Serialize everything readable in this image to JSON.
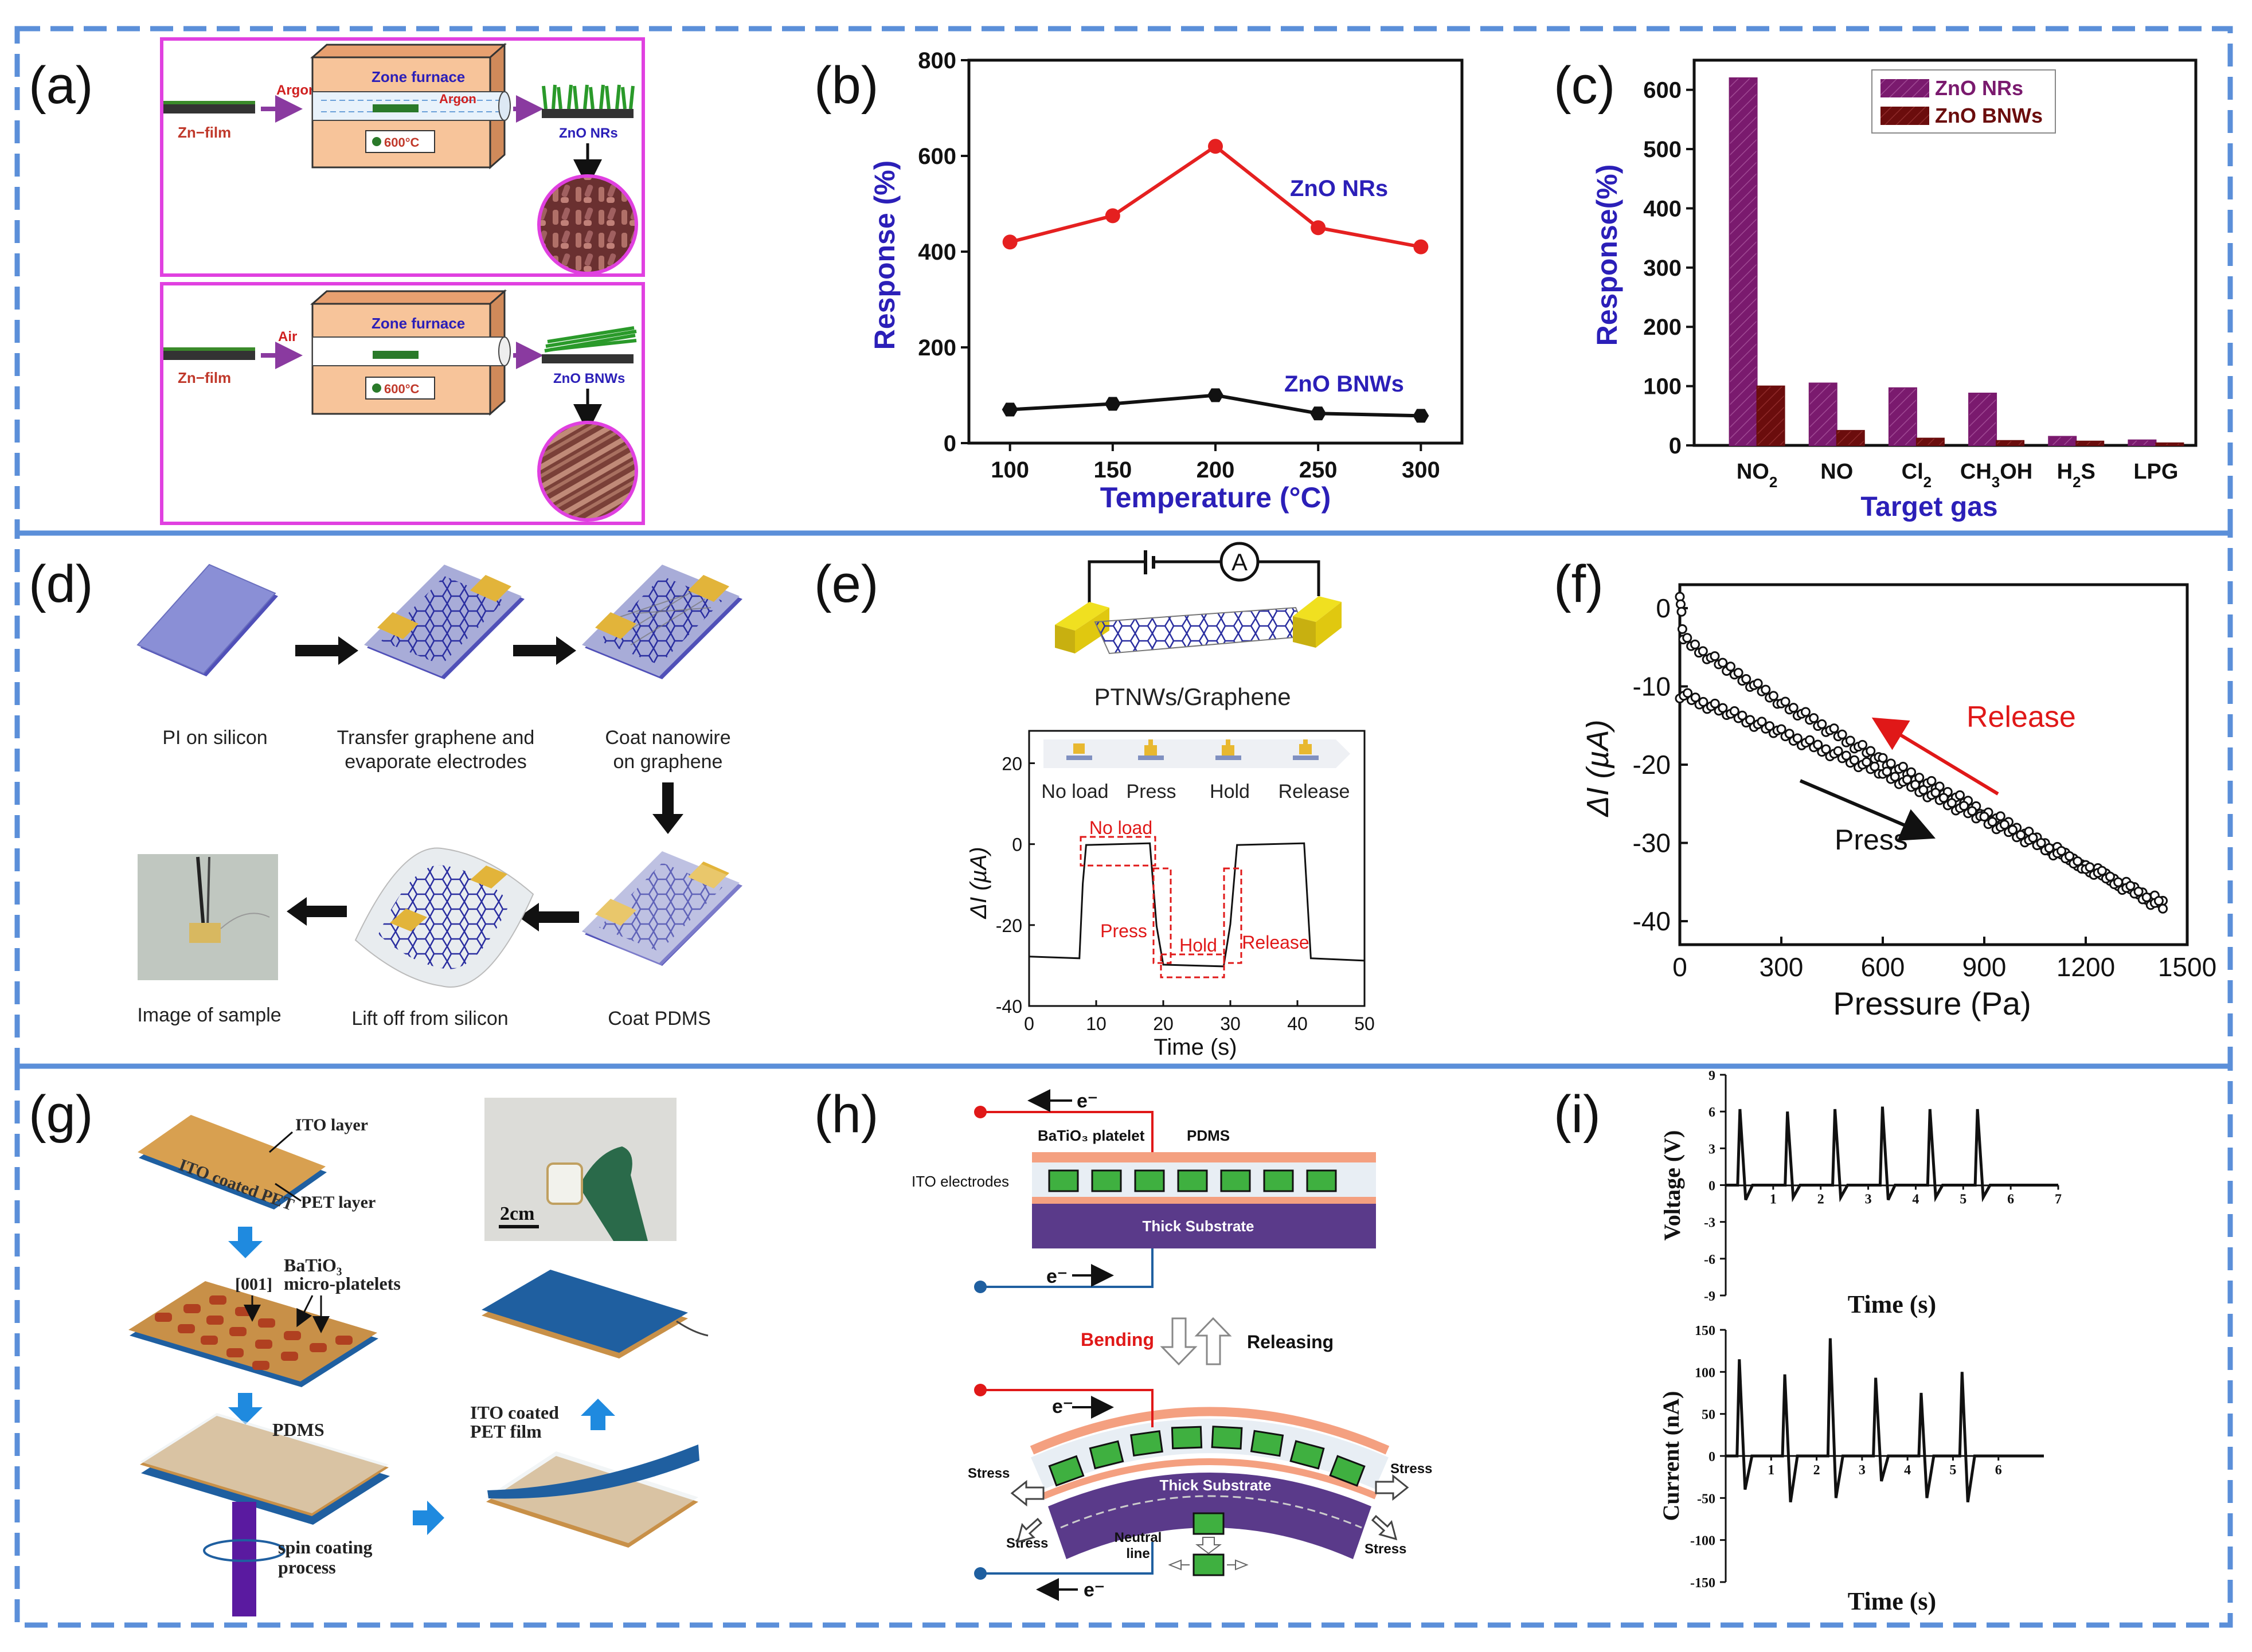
{
  "panel_labels": [
    "(a)",
    "(b)",
    "(c)",
    "(d)",
    "(e)",
    "(f)",
    "(g)",
    "(h)",
    "(i)"
  ],
  "colors": {
    "frame": "#5b8fd9",
    "pink": "#e040e0",
    "furnace": "#f7c49a",
    "nr_red": "#e52020",
    "bnw_black": "#111111",
    "axis_blue": "#2b1fb8",
    "purple": "#7a1a6e",
    "maroon": "#6b0d0d",
    "gold": "#e2b43a",
    "pi_blue": "#8a8fd6",
    "release_red": "#e01818",
    "ito_blue": "#1f5fa0",
    "substrate": "#5a3a8a",
    "green": "#4caf50"
  },
  "panel_a": {
    "top": {
      "film": "Zn−film",
      "gas1": "Argon",
      "gas2": "Argon",
      "furnace": "Zone furnace",
      "temp": "600°C",
      "product": "ZnO NRs"
    },
    "bottom": {
      "film": "Zn−film",
      "gas1": "Air",
      "furnace": "Zone furnace",
      "temp": "600°C",
      "product": "ZnO BNWs"
    }
  },
  "panel_b": {
    "chart_data": {
      "type": "line",
      "xlabel": "Temperature (°C)",
      "ylabel": "Response (%)",
      "x": [
        100,
        150,
        200,
        250,
        300
      ],
      "xlim": [
        80,
        320
      ],
      "ylim": [
        0,
        800
      ],
      "xticks": [
        "100",
        "150",
        "200",
        "250",
        "300"
      ],
      "yticks": [
        "0",
        "200",
        "400",
        "600",
        "800"
      ],
      "series": [
        {
          "name": "ZnO NRs",
          "color": "#e52020",
          "values": [
            420,
            475,
            620,
            450,
            410
          ]
        },
        {
          "name": "ZnO BNWs",
          "color": "#111111",
          "values": [
            70,
            82,
            100,
            62,
            57
          ]
        }
      ]
    }
  },
  "panel_c": {
    "chart_data": {
      "type": "bar",
      "xlabel": "Target gas",
      "ylabel": "Response(%)",
      "categories": [
        "NO2",
        "NO",
        "Cl2",
        "CH3OH",
        "H2S",
        "LPG"
      ],
      "category_labels": [
        [
          "NO",
          "2",
          ""
        ],
        [
          "NO",
          "",
          ""
        ],
        [
          "Cl",
          "2",
          ""
        ],
        [
          "CH",
          "3",
          "OH"
        ],
        [
          "H",
          "2",
          "S"
        ],
        [
          "LPG",
          "",
          ""
        ]
      ],
      "ylim": [
        0,
        650
      ],
      "yticks": [
        "0",
        "100",
        "200",
        "300",
        "400",
        "500",
        "600"
      ],
      "legend": "top-right",
      "series": [
        {
          "name": "ZnO NRs",
          "color": "#7a1a6e",
          "values": [
            620,
            105,
            97,
            88,
            15,
            9
          ]
        },
        {
          "name": "ZnO BNWs",
          "color": "#6b0d0d",
          "values": [
            100,
            25,
            12,
            8,
            7,
            4
          ]
        }
      ]
    }
  },
  "panel_d": {
    "steps": {
      "s1": "PI on silicon",
      "s2a": "Transfer graphene and",
      "s2b": "evaporate electrodes",
      "s3a": "Coat nanowire",
      "s3b": "on graphene",
      "s4": "Coat PDMS",
      "s5": "Lift off from silicon",
      "s6": "Image of sample"
    }
  },
  "panel_e": {
    "schematic_label": "PTNWs/Graphene",
    "meter": "A",
    "states": [
      "No load",
      "Press",
      "Hold",
      "Release"
    ],
    "annotations": {
      "noload": "No load",
      "press": "Press",
      "hold": "Hold",
      "release": "Release"
    },
    "chart_data": {
      "type": "line",
      "xlabel": "Time (s)",
      "ylabel": "ΔI  (µA)",
      "xlim": [
        0,
        50
      ],
      "ylim": [
        -40,
        28
      ],
      "xticks": [
        "0",
        "10",
        "20",
        "30",
        "40",
        "50"
      ],
      "yticks": [
        "20",
        "0",
        "-20",
        "-40"
      ],
      "series": [
        {
          "name": "ΔI",
          "x": [
            0,
            7.5,
            8,
            8.5,
            18,
            19,
            20,
            29,
            30,
            31,
            41,
            42,
            50
          ],
          "values": [
            -28,
            -28,
            -10,
            0,
            0,
            -20,
            -30,
            -30,
            -20,
            0,
            0,
            -28,
            -29
          ]
        }
      ]
    }
  },
  "panel_f": {
    "release": "Release",
    "press": "Press",
    "chart_data": {
      "type": "scatter",
      "xlabel": "Pressure (Pa)",
      "ylabel": "ΔI  (µA)",
      "xlim": [
        0,
        1500
      ],
      "ylim": [
        -43,
        3
      ],
      "xticks": [
        "0",
        "300",
        "600",
        "900",
        "1200",
        "1500"
      ],
      "yticks": [
        "0",
        "-10",
        "-20",
        "-30",
        "-40"
      ],
      "series": [
        {
          "name": "Release",
          "x": [
            0,
            10,
            150,
            300,
            600,
            900,
            1200,
            1440
          ],
          "values": [
            2,
            -4,
            -8,
            -12,
            -19.5,
            -26,
            -33,
            -38
          ]
        },
        {
          "name": "Press",
          "x": [
            0,
            150,
            300,
            600,
            900,
            1200,
            1440
          ],
          "values": [
            -11,
            -13.5,
            -16,
            -21,
            -27,
            -33,
            -38.5
          ]
        }
      ]
    }
  },
  "panel_g": {
    "ito_layer": "ITO layer",
    "ito_pet": "ITO coated PET",
    "pet_layer": "PET layer",
    "batio3": "BaTiO₃",
    "direction": "[001]",
    "platelets": "micro-platelets",
    "pdms": "PDMS",
    "spin1": "spin coating",
    "spin2": "process",
    "film1": "ITO coated",
    "film2": "PET film",
    "scale": "2cm"
  },
  "panel_h": {
    "electron": "e⁻",
    "platelet": "BaTiO₃ platelet",
    "pdms": "PDMS",
    "ito": "ITO electrodes",
    "substrate": "Thick Substrate",
    "bending": "Bending",
    "releasing": "Releasing",
    "stress": "Stress",
    "neutral1": "Neutral",
    "neutral2": "line"
  },
  "panel_i": {
    "voltage": {
      "chart_data": {
        "type": "line",
        "xlabel": "Time (s)",
        "ylabel": "Voltage (V)",
        "xlim": [
          0,
          7
        ],
        "ylim": [
          -9,
          9
        ],
        "xticks": [
          "1",
          "2",
          "3",
          "4",
          "5",
          "6",
          "7"
        ],
        "yticks": [
          "9",
          "6",
          "3",
          "0",
          "-3",
          "-6",
          "-9"
        ],
        "peaks_x": [
          0.3,
          1.3,
          2.3,
          3.3,
          4.3,
          5.3
        ],
        "peaks": [
          6.2,
          6.0,
          6.2,
          6.4,
          6.2,
          6.2
        ],
        "troughs": [
          -1.2,
          -1.0,
          -1.0,
          -1.2,
          -1.0,
          -1.0
        ]
      }
    },
    "current": {
      "chart_data": {
        "type": "line",
        "xlabel": "Time (s)",
        "ylabel": "Current (nA)",
        "xlim": [
          0,
          7
        ],
        "ylim": [
          -150,
          150
        ],
        "xticks": [
          "1",
          "2",
          "3",
          "4",
          "5",
          "6"
        ],
        "yticks": [
          "150",
          "100",
          "50",
          "0",
          "-50",
          "-100",
          "-150"
        ],
        "peaks_x": [
          0.3,
          1.3,
          2.3,
          3.3,
          4.3,
          5.2
        ],
        "peaks": [
          115,
          97,
          140,
          93,
          75,
          100
        ],
        "troughs": [
          -40,
          -55,
          -50,
          -30,
          -50,
          -55
        ]
      }
    }
  }
}
